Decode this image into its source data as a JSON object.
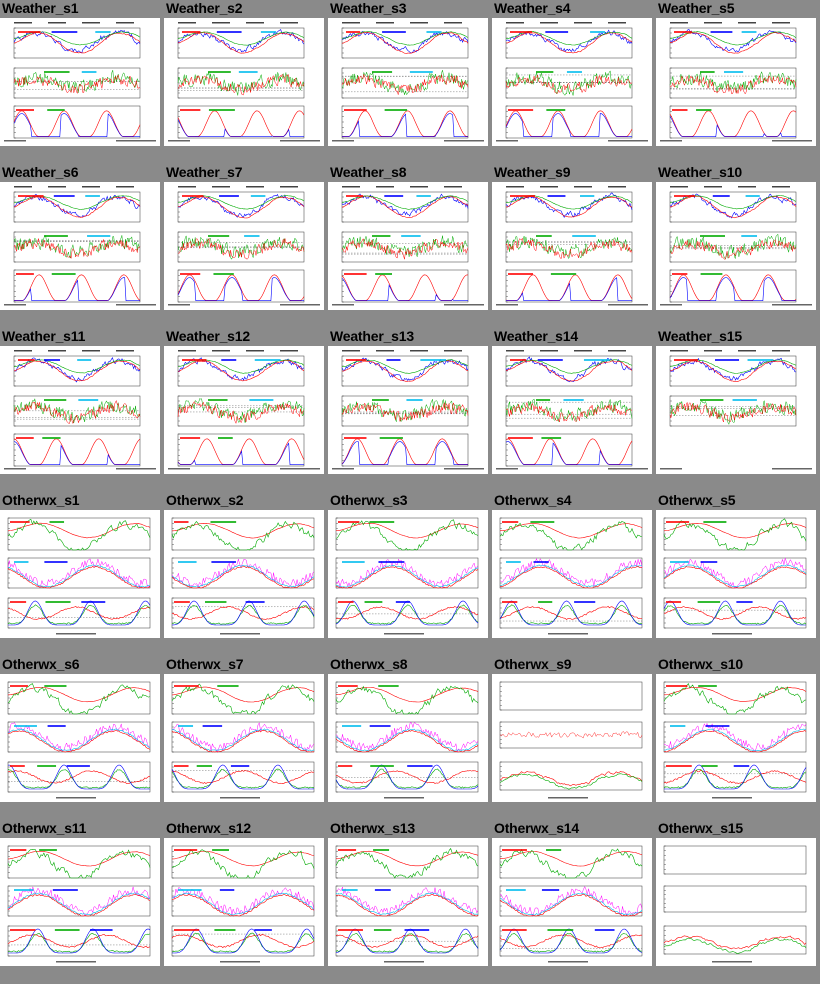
{
  "rows": [
    [
      {
        "label": "Weather_s1",
        "kind": "weather",
        "seed": 1,
        "panels": 3
      },
      {
        "label": "Weather_s2",
        "kind": "weather",
        "seed": 2,
        "panels": 3
      },
      {
        "label": "Weather_s3",
        "kind": "weather",
        "seed": 3,
        "panels": 3
      },
      {
        "label": "Weather_s4",
        "kind": "weather",
        "seed": 4,
        "panels": 3
      },
      {
        "label": "Weather_s5",
        "kind": "weather",
        "seed": 5,
        "panels": 3
      }
    ],
    [
      {
        "label": "Weather_s6",
        "kind": "weather",
        "seed": 6,
        "panels": 3
      },
      {
        "label": "Weather_s7",
        "kind": "weather",
        "seed": 7,
        "panels": 3
      },
      {
        "label": "Weather_s8",
        "kind": "weather",
        "seed": 8,
        "panels": 3
      },
      {
        "label": "Weather_s9",
        "kind": "weather",
        "seed": 9,
        "panels": 3
      },
      {
        "label": "Weather_s10",
        "kind": "weather",
        "seed": 10,
        "panels": 3
      }
    ],
    [
      {
        "label": "Weather_s11",
        "kind": "weather",
        "seed": 11,
        "panels": 3
      },
      {
        "label": "Weather_s12",
        "kind": "weather",
        "seed": 12,
        "panels": 3
      },
      {
        "label": "Weather_s13",
        "kind": "weather",
        "seed": 13,
        "panels": 3
      },
      {
        "label": "Weather_s14",
        "kind": "weather",
        "seed": 14,
        "panels": 3
      },
      {
        "label": "Weather_s15",
        "kind": "weather",
        "seed": 15,
        "panels": 2
      }
    ],
    [
      {
        "label": "Otherwx_s1",
        "kind": "otherwx",
        "seed": 21,
        "panels": 3
      },
      {
        "label": "Otherwx_s2",
        "kind": "otherwx",
        "seed": 22,
        "panels": 3
      },
      {
        "label": "Otherwx_s3",
        "kind": "otherwx",
        "seed": 23,
        "panels": 3
      },
      {
        "label": "Otherwx_s4",
        "kind": "otherwx",
        "seed": 24,
        "panels": 3
      },
      {
        "label": "Otherwx_s5",
        "kind": "otherwx",
        "seed": 25,
        "panels": 3
      }
    ],
    [
      {
        "label": "Otherwx_s6",
        "kind": "otherwx",
        "seed": 26,
        "panels": 3
      },
      {
        "label": "Otherwx_s7",
        "kind": "otherwx",
        "seed": 27,
        "panels": 3
      },
      {
        "label": "Otherwx_s8",
        "kind": "otherwx",
        "seed": 28,
        "panels": 3
      },
      {
        "label": "Otherwx_s9",
        "kind": "sparse",
        "seed": 29,
        "panels": 3
      },
      {
        "label": "Otherwx_s10",
        "kind": "otherwx",
        "seed": 30,
        "panels": 3
      }
    ],
    [
      {
        "label": "Otherwx_s11",
        "kind": "otherwx",
        "seed": 31,
        "panels": 3
      },
      {
        "label": "Otherwx_s12",
        "kind": "otherwx",
        "seed": 32,
        "panels": 3
      },
      {
        "label": "Otherwx_s13",
        "kind": "otherwx",
        "seed": 33,
        "panels": 3
      },
      {
        "label": "Otherwx_s14",
        "kind": "otherwx",
        "seed": 34,
        "panels": 3
      },
      {
        "label": "Otherwx_s15",
        "kind": "sparse",
        "seed": 35,
        "panels": 3
      }
    ]
  ],
  "colors": {
    "page_background": "#8a8a8a",
    "thumb_background": "#ffffff",
    "series": [
      "#ff0000",
      "#00aa00",
      "#0000ff",
      "#00bbee",
      "#ff00ff"
    ]
  }
}
